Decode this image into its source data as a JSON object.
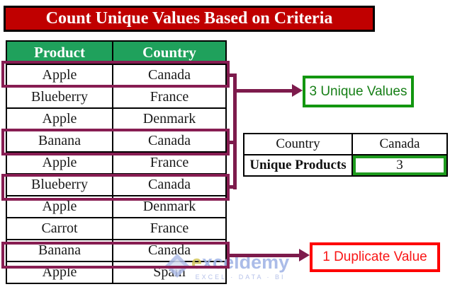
{
  "title": {
    "text": "Count Unique Values Based on Criteria"
  },
  "main_table": {
    "headers": [
      "Product",
      "Country"
    ],
    "rows": [
      {
        "product": "Apple",
        "country": "Canada",
        "highlighted": true
      },
      {
        "product": "Blueberry",
        "country": "France",
        "highlighted": false
      },
      {
        "product": "Apple",
        "country": "Denmark",
        "highlighted": false
      },
      {
        "product": "Banana",
        "country": "Canada",
        "highlighted": true
      },
      {
        "product": "Apple",
        "country": "France",
        "highlighted": false
      },
      {
        "product": "Blueberry",
        "country": "Canada",
        "highlighted": true
      },
      {
        "product": "Apple",
        "country": "Denmark",
        "highlighted": false
      },
      {
        "product": "Carrot",
        "country": "France",
        "highlighted": false
      },
      {
        "product": "Banana",
        "country": "Canada",
        "highlighted": true
      },
      {
        "product": "Apple",
        "country": "Spain",
        "highlighted": false
      }
    ]
  },
  "callouts": {
    "unique": "3 Unique Values",
    "duplicate": "1 Duplicate Value"
  },
  "result_table": {
    "row1": {
      "label": "Country",
      "value": "Canada"
    },
    "row2": {
      "label": "Unique Products",
      "value": "3"
    }
  },
  "watermark": {
    "brand_first": "e",
    "brand_rest": "xceldemy",
    "tagline": "EXCEL · DATA · BI"
  },
  "colors": {
    "banner_bg": "#C00000",
    "header_bg": "#1FA15C",
    "highlight_magenta": "#871D52",
    "connector_magenta": "#7D1B4C",
    "unique_green_border": "#12960F",
    "unique_green_text": "#167F16",
    "duplicate_red": "#FE0000",
    "canada_value_red": "#FF0000",
    "result_cell_green_border": "#1E9B1E"
  }
}
